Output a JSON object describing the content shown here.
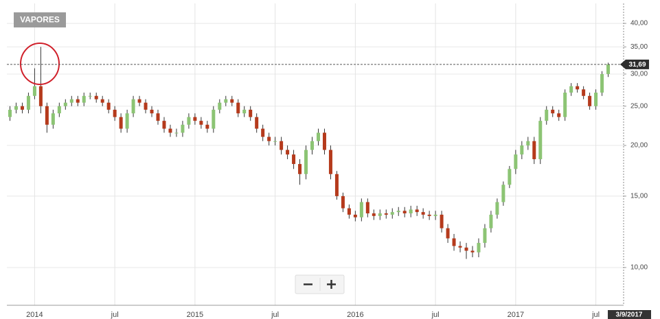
{
  "chart_data": {
    "type": "candlestick",
    "title": "VAPORES",
    "categories": [
      null,
      null,
      null,
      null,
      "2014",
      null,
      null,
      null,
      null,
      null,
      null,
      null,
      null,
      null,
      null,
      null,
      null,
      "jul",
      null,
      null,
      null,
      null,
      null,
      null,
      null,
      null,
      null,
      null,
      null,
      null,
      "2015",
      null,
      null,
      null,
      null,
      null,
      null,
      null,
      null,
      null,
      null,
      null,
      null,
      "jul",
      null,
      null,
      null,
      null,
      null,
      null,
      null,
      null,
      null,
      null,
      null,
      null,
      "2016",
      null,
      null,
      null,
      null,
      null,
      null,
      null,
      null,
      null,
      null,
      null,
      null,
      "jul",
      null,
      null,
      null,
      null,
      null,
      null,
      null,
      null,
      null,
      null,
      null,
      null,
      "2017",
      null,
      null,
      null,
      null,
      null,
      null,
      null,
      null,
      null,
      null,
      null,
      null,
      "jul",
      null,
      null
    ],
    "open": [
      23.5,
      24.5,
      25,
      24.5,
      26.5,
      28,
      25,
      22.5,
      24,
      25,
      25.5,
      26,
      25.5,
      26.5,
      26.5,
      26,
      25.5,
      24.5,
      23.5,
      22,
      24,
      26,
      25.5,
      24.5,
      24,
      23,
      22,
      21.5,
      21.5,
      22.5,
      23.5,
      23,
      22.5,
      22,
      24.5,
      25.5,
      26,
      25.5,
      24,
      24.5,
      23.5,
      22,
      21,
      20.5,
      20.5,
      19.5,
      19,
      18,
      17,
      19.5,
      20.5,
      21.5,
      19.5,
      17,
      15,
      14,
      13.5,
      13.3,
      14.5,
      13.6,
      13.4,
      13.6,
      13.5,
      13.7,
      13.8,
      13.6,
      13.9,
      13.7,
      13.5,
      13.4,
      13.5,
      12.5,
      11.8,
      11.3,
      11.2,
      11,
      10.9,
      11.5,
      12.5,
      13.5,
      14.5,
      16,
      17.5,
      19,
      20,
      20.5,
      18.5,
      23,
      24.5,
      24,
      23.5,
      27,
      28,
      27.5,
      26.5,
      25,
      27,
      30
    ],
    "high": [
      25,
      25.5,
      25.5,
      27,
      31,
      35,
      25.5,
      24.5,
      25.5,
      26,
      26.5,
      26.5,
      27,
      27,
      27,
      26.5,
      26,
      25,
      24,
      24.5,
      26.5,
      26.5,
      26,
      25,
      24.5,
      23.5,
      22.5,
      22,
      23,
      24,
      24,
      23.5,
      23,
      25,
      26,
      26.5,
      26.5,
      26,
      25,
      25,
      24,
      22.5,
      21.5,
      21,
      21,
      20,
      19.5,
      18.5,
      20,
      21,
      22,
      22,
      20,
      17.3,
      15.3,
      14.3,
      13.8,
      14.8,
      14.8,
      13.9,
      13.9,
      13.9,
      14,
      14.1,
      14.1,
      14.2,
      14.2,
      14,
      13.8,
      13.8,
      13.8,
      12.8,
      12.1,
      11.6,
      11.5,
      11.3,
      11.8,
      12.8,
      13.8,
      14.8,
      16.3,
      17.8,
      19.5,
      20.5,
      21,
      21,
      23.5,
      25,
      25,
      24.5,
      27.5,
      28.5,
      28.5,
      28,
      27,
      27.5,
      30.5,
      32
    ],
    "low": [
      23,
      24,
      24,
      24,
      26,
      24,
      21.5,
      22,
      23.5,
      24.5,
      25,
      25,
      25,
      26,
      25.5,
      25,
      24,
      23,
      21.5,
      21.5,
      23.5,
      25,
      24,
      23.5,
      22.5,
      21.5,
      21,
      21,
      21,
      22,
      22.5,
      22,
      21.5,
      21.5,
      24,
      25,
      25,
      23.5,
      23.5,
      23,
      21.5,
      20.5,
      20,
      20,
      19,
      18.5,
      17.5,
      16,
      16.5,
      19,
      20,
      19,
      16.5,
      14.7,
      13.7,
      13.2,
      13,
      13,
      13.3,
      13.1,
      13.1,
      13.2,
      13.2,
      13.4,
      13.3,
      13.3,
      13.4,
      13.2,
      13.1,
      13.1,
      12.2,
      11.5,
      11,
      10.9,
      10.5,
      10.6,
      10.6,
      11.2,
      12.2,
      13.2,
      14.2,
      15.7,
      17,
      18.5,
      19.5,
      18,
      18,
      22.5,
      23.5,
      23,
      23,
      26.5,
      27,
      26,
      24.5,
      24.5,
      26.5,
      29.5
    ],
    "close": [
      24.5,
      25,
      24.5,
      26.5,
      28,
      25,
      22.5,
      24,
      25,
      25.5,
      26,
      25.5,
      26.5,
      26.5,
      26,
      25.5,
      24.5,
      23.5,
      22,
      24,
      26,
      25.5,
      24.5,
      24,
      23,
      22,
      21.5,
      21.5,
      22.5,
      23.5,
      23,
      22.5,
      22,
      24.5,
      25.5,
      26,
      25.5,
      24,
      24.5,
      23.5,
      22,
      21,
      20.5,
      20.5,
      19.5,
      19,
      18,
      17,
      19.5,
      20.5,
      21.5,
      19.5,
      17,
      15,
      14,
      13.5,
      13.3,
      14.5,
      13.6,
      13.4,
      13.6,
      13.5,
      13.7,
      13.8,
      13.6,
      13.9,
      13.7,
      13.5,
      13.4,
      13.5,
      12.5,
      11.8,
      11.3,
      11.2,
      11,
      10.9,
      11.5,
      12.5,
      13.5,
      14.5,
      16,
      17.5,
      19,
      20,
      20.5,
      18.5,
      23,
      24.5,
      24,
      23.5,
      27,
      28,
      27.5,
      26.5,
      25,
      27,
      30,
      31.69
    ],
    "up_color": "#8cc474",
    "down_color": "#b53a1c",
    "ylim": [
      8.07,
      44.8
    ],
    "log_scale": true,
    "grid": true,
    "yticks": [
      {
        "value": 10,
        "label": "10,00"
      },
      {
        "value": 15,
        "label": "15,00"
      },
      {
        "value": 20,
        "label": "20,00"
      },
      {
        "value": 25,
        "label": "25,00"
      },
      {
        "value": 30,
        "label": "30,00"
      },
      {
        "value": 35,
        "label": "35,00"
      },
      {
        "value": 40,
        "label": "40,00"
      }
    ],
    "last_label": "31,69",
    "date_label": "3/9/2017"
  }
}
